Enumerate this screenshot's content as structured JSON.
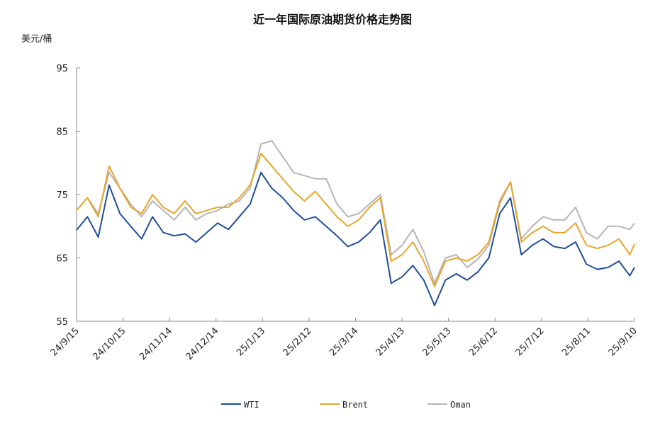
{
  "chart_data": {
    "type": "line",
    "title": "近一年国际原油期货价格走势图",
    "ylabel": "美元/桶",
    "xlabel": "",
    "ylim": [
      55,
      95
    ],
    "yticks": [
      55,
      65,
      75,
      85,
      95
    ],
    "xlim": [
      "2024-09-15",
      "2025-09-10"
    ],
    "xtick_labels": [
      "24/9/15",
      "24/10/15",
      "24/11/14",
      "24/12/14",
      "25/1/13",
      "25/2/12",
      "25/3/14",
      "25/4/13",
      "25/5/13",
      "25/6/12",
      "25/7/12",
      "25/8/11",
      "25/9/10"
    ],
    "xtick_dates": [
      "2024-09-15",
      "2024-10-15",
      "2024-11-14",
      "2024-12-14",
      "2025-01-13",
      "2025-02-12",
      "2025-03-14",
      "2025-04-13",
      "2025-05-13",
      "2025-06-12",
      "2025-07-12",
      "2025-08-11",
      "2025-09-10"
    ],
    "grid": false,
    "legend_position": "bottom",
    "x": [
      "2024-09-15",
      "2024-09-22",
      "2024-09-29",
      "2024-10-06",
      "2024-10-13",
      "2024-10-20",
      "2024-10-27",
      "2024-11-03",
      "2024-11-10",
      "2024-11-17",
      "2024-11-24",
      "2024-12-01",
      "2024-12-08",
      "2024-12-15",
      "2024-12-22",
      "2024-12-29",
      "2025-01-05",
      "2025-01-12",
      "2025-01-19",
      "2025-01-26",
      "2025-02-02",
      "2025-02-09",
      "2025-02-16",
      "2025-02-23",
      "2025-03-02",
      "2025-03-09",
      "2025-03-16",
      "2025-03-23",
      "2025-03-30",
      "2025-04-06",
      "2025-04-13",
      "2025-04-20",
      "2025-04-27",
      "2025-05-04",
      "2025-05-11",
      "2025-05-18",
      "2025-05-25",
      "2025-06-01",
      "2025-06-08",
      "2025-06-15",
      "2025-06-22",
      "2025-06-29",
      "2025-07-06",
      "2025-07-13",
      "2025-07-20",
      "2025-07-27",
      "2025-08-03",
      "2025-08-10",
      "2025-08-17",
      "2025-08-24",
      "2025-08-31",
      "2025-09-07",
      "2025-09-10"
    ],
    "series": [
      {
        "name": "WTI",
        "color": "#1f4e9c",
        "values": [
          69.4,
          71.5,
          68.3,
          76.5,
          72,
          70,
          68,
          71.5,
          69,
          68.5,
          68.8,
          67.5,
          69,
          70.5,
          69.5,
          71.5,
          73.5,
          78.5,
          76,
          74.5,
          72.5,
          71,
          71.5,
          70,
          68.5,
          66.8,
          67.5,
          69,
          71,
          61,
          62,
          63.8,
          61.5,
          57.5,
          61.5,
          62.5,
          61.5,
          62.8,
          65,
          72,
          74.5,
          65.5,
          67,
          68,
          66.8,
          66.5,
          67.5,
          64,
          63.2,
          63.5,
          64.5,
          62.2,
          63.5
        ]
      },
      {
        "name": "Brent",
        "color": "#e8a52a",
        "values": [
          72.5,
          74.5,
          71.5,
          79.5,
          76,
          73,
          72,
          75,
          73,
          72,
          74,
          72,
          72.5,
          73,
          73,
          74.5,
          76.5,
          81.5,
          79.5,
          77.5,
          75.5,
          74,
          75.5,
          73.5,
          71.5,
          70,
          71,
          73,
          74.5,
          64.5,
          65.5,
          67.5,
          64.5,
          60.5,
          64.5,
          65,
          64.5,
          65.5,
          67.5,
          74,
          77,
          67.5,
          69,
          70,
          69,
          69,
          70.5,
          67,
          66.5,
          67,
          68,
          65.5,
          67.2
        ]
      },
      {
        "name": "Oman",
        "color": "#b5b5b5",
        "values": [
          72.5,
          74.5,
          72,
          78.5,
          76,
          73.5,
          71.5,
          74,
          72.5,
          71,
          73,
          71,
          72,
          72.5,
          73.5,
          74,
          76,
          83,
          83.5,
          81,
          78.5,
          78,
          77.5,
          77.5,
          73.5,
          71.5,
          72,
          73.5,
          75,
          65.5,
          67,
          69.5,
          66,
          61,
          65,
          65.5,
          63.5,
          64.8,
          67,
          73.5,
          77,
          68,
          70,
          71.5,
          71,
          71,
          73,
          69,
          68,
          70,
          70,
          69.5,
          70.5
        ]
      }
    ]
  }
}
